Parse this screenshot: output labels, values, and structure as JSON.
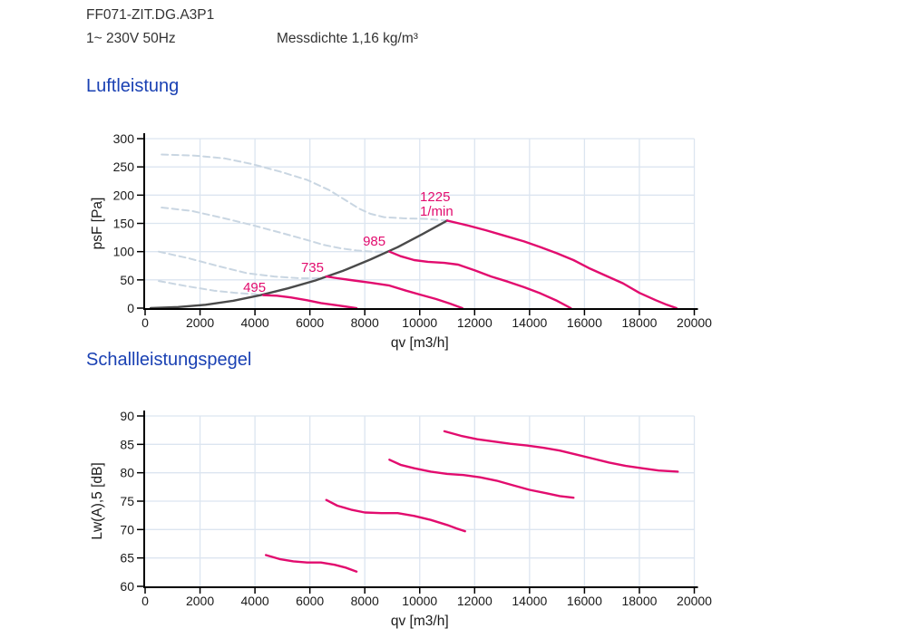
{
  "header": {
    "model": "FF071-ZIT.DG.A3P1",
    "power": "1~ 230V 50Hz",
    "density": "Messdichte 1,16 kg/m³"
  },
  "colors": {
    "heading_blue": "#1A41B3",
    "curve_pink": "#E20C6E",
    "curve_gray": "#4A4A4A",
    "curve_dashed_blue": "#C9D6E2",
    "gridline": "#DCE5F0",
    "axis": "#000000",
    "text": "#1A1A1A",
    "header_text": "#333333"
  },
  "chart_data": [
    {
      "type": "line",
      "title": "Luftleistung",
      "xlabel": "qv [m3/h]",
      "ylabel": "psF [Pa]",
      "xlim": [
        0,
        20000
      ],
      "ylim": [
        0,
        300
      ],
      "x_ticks": [
        0,
        2000,
        4000,
        6000,
        8000,
        10000,
        12000,
        14000,
        16000,
        18000,
        20000
      ],
      "y_ticks": [
        0,
        50,
        100,
        150,
        200,
        250,
        300
      ],
      "grid": true,
      "legend": "none",
      "series": [
        {
          "name": "system-limit-curve",
          "color_key": "curve_gray",
          "dash": false,
          "points": [
            [
              200,
              0
            ],
            [
              1200,
              2
            ],
            [
              2200,
              6
            ],
            [
              3200,
              13
            ],
            [
              4200,
              23
            ],
            [
              5200,
              35
            ],
            [
              6200,
              49
            ],
            [
              7200,
              66
            ],
            [
              8200,
              86
            ],
            [
              9200,
              108
            ],
            [
              10100,
              131
            ],
            [
              11000,
              155
            ]
          ]
        },
        {
          "name": "1225-rpm-unstable",
          "color_key": "curve_dashed_blue",
          "dash": true,
          "points": [
            [
              600,
              272
            ],
            [
              1800,
              270
            ],
            [
              2900,
              265
            ],
            [
              3900,
              255
            ],
            [
              4900,
              242
            ],
            [
              5900,
              227
            ],
            [
              6700,
              209
            ],
            [
              7300,
              191
            ],
            [
              7800,
              176
            ],
            [
              8200,
              167
            ],
            [
              8700,
              161
            ],
            [
              9400,
              159
            ],
            [
              10200,
              158
            ],
            [
              11000,
              155
            ]
          ]
        },
        {
          "name": "985-rpm-unstable",
          "color_key": "curve_dashed_blue",
          "dash": true,
          "points": [
            [
              600,
              178
            ],
            [
              1700,
              172
            ],
            [
              2800,
              160
            ],
            [
              3900,
              147
            ],
            [
              4900,
              134
            ],
            [
              5800,
              122
            ],
            [
              6500,
              112
            ],
            [
              7100,
              106
            ],
            [
              7700,
              102
            ],
            [
              8300,
              100
            ],
            [
              8900,
              100
            ]
          ]
        },
        {
          "name": "735-rpm-unstable",
          "color_key": "curve_dashed_blue",
          "dash": true,
          "points": [
            [
              500,
              100
            ],
            [
              1600,
              88
            ],
            [
              2700,
              74
            ],
            [
              3700,
              62
            ],
            [
              4700,
              56
            ],
            [
              5600,
              53
            ],
            [
              6200,
              53
            ],
            [
              6600,
              55
            ]
          ]
        },
        {
          "name": "495-rpm-unstable",
          "color_key": "curve_dashed_blue",
          "dash": true,
          "points": [
            [
              500,
              48
            ],
            [
              1500,
              39
            ],
            [
              2500,
              31
            ],
            [
              3300,
              27
            ],
            [
              3900,
              25
            ],
            [
              4300,
              23
            ]
          ]
        },
        {
          "name": "1225-rpm-curve",
          "color_key": "curve_pink",
          "dash": false,
          "points": [
            [
              11000,
              155
            ],
            [
              11700,
              147
            ],
            [
              12400,
              138
            ],
            [
              13100,
              128
            ],
            [
              13800,
              118
            ],
            [
              14400,
              108
            ],
            [
              15000,
              97
            ],
            [
              15600,
              85
            ],
            [
              16200,
              70
            ],
            [
              16800,
              57
            ],
            [
              17400,
              44
            ],
            [
              18000,
              27
            ],
            [
              18600,
              14
            ],
            [
              19000,
              6
            ],
            [
              19350,
              0
            ]
          ]
        },
        {
          "name": "985-rpm-curve",
          "color_key": "curve_pink",
          "dash": false,
          "points": [
            [
              8900,
              100
            ],
            [
              9300,
              92
            ],
            [
              9800,
              85
            ],
            [
              10300,
              82
            ],
            [
              10900,
              80
            ],
            [
              11400,
              77
            ],
            [
              12000,
              67
            ],
            [
              12600,
              56
            ],
            [
              13200,
              47
            ],
            [
              13800,
              37
            ],
            [
              14400,
              26
            ],
            [
              15000,
              13
            ],
            [
              15500,
              0
            ]
          ]
        },
        {
          "name": "735-rpm-curve",
          "color_key": "curve_pink",
          "dash": false,
          "points": [
            [
              6600,
              56
            ],
            [
              7000,
              53
            ],
            [
              7600,
              49
            ],
            [
              8200,
              45
            ],
            [
              8900,
              40
            ],
            [
              9500,
              31
            ],
            [
              10000,
              24
            ],
            [
              10600,
              16
            ],
            [
              11100,
              8
            ],
            [
              11550,
              0
            ]
          ]
        },
        {
          "name": "495-rpm-curve",
          "color_key": "curve_pink",
          "dash": false,
          "points": [
            [
              4300,
              23
            ],
            [
              4800,
              22
            ],
            [
              5300,
              19
            ],
            [
              5900,
              14
            ],
            [
              6400,
              9
            ],
            [
              7000,
              5
            ],
            [
              7700,
              0
            ]
          ]
        }
      ],
      "annotations": [
        {
          "text": "495",
          "x": 3570,
          "y": 29
        },
        {
          "text": "735",
          "x": 5680,
          "y": 64
        },
        {
          "text": "985",
          "x": 7930,
          "y": 111
        },
        {
          "text": "1225",
          "x": 10010,
          "y": 189
        },
        {
          "text": "1/min",
          "x": 10010,
          "y": 164
        }
      ]
    },
    {
      "type": "line",
      "title": "Schallleistungspegel",
      "xlabel": "qv [m3/h]",
      "ylabel": "Lw(A),5 [dB]",
      "xlim": [
        0,
        20000
      ],
      "ylim": [
        60,
        90
      ],
      "x_ticks": [
        0,
        2000,
        4000,
        6000,
        8000,
        10000,
        12000,
        14000,
        16000,
        18000,
        20000
      ],
      "y_ticks": [
        60,
        65,
        70,
        75,
        80,
        85,
        90
      ],
      "grid": true,
      "legend": "none",
      "series": [
        {
          "name": "1225-rpm-noise",
          "color_key": "curve_pink",
          "dash": false,
          "points": [
            [
              10900,
              87.3
            ],
            [
              11500,
              86.5
            ],
            [
              12100,
              85.9
            ],
            [
              12700,
              85.5
            ],
            [
              13300,
              85.1
            ],
            [
              13900,
              84.8
            ],
            [
              14500,
              84.4
            ],
            [
              15100,
              83.9
            ],
            [
              15700,
              83.2
            ],
            [
              16300,
              82.5
            ],
            [
              16900,
              81.8
            ],
            [
              17500,
              81.2
            ],
            [
              18100,
              80.8
            ],
            [
              18700,
              80.4
            ],
            [
              19400,
              80.2
            ]
          ]
        },
        {
          "name": "985-rpm-noise",
          "color_key": "curve_pink",
          "dash": false,
          "points": [
            [
              8900,
              82.3
            ],
            [
              9300,
              81.4
            ],
            [
              9800,
              80.8
            ],
            [
              10400,
              80.2
            ],
            [
              11000,
              79.8
            ],
            [
              11600,
              79.6
            ],
            [
              12200,
              79.2
            ],
            [
              12800,
              78.6
            ],
            [
              13400,
              77.8
            ],
            [
              14000,
              77.0
            ],
            [
              14600,
              76.4
            ],
            [
              15100,
              75.9
            ],
            [
              15600,
              75.6
            ]
          ]
        },
        {
          "name": "735-rpm-noise",
          "color_key": "curve_pink",
          "dash": false,
          "points": [
            [
              6600,
              75.2
            ],
            [
              7000,
              74.2
            ],
            [
              7500,
              73.5
            ],
            [
              8000,
              73.0
            ],
            [
              8600,
              72.9
            ],
            [
              9200,
              72.9
            ],
            [
              9800,
              72.4
            ],
            [
              10400,
              71.7
            ],
            [
              11000,
              70.8
            ],
            [
              11400,
              70.1
            ],
            [
              11650,
              69.7
            ]
          ]
        },
        {
          "name": "495-rpm-noise",
          "color_key": "curve_pink",
          "dash": false,
          "points": [
            [
              4400,
              65.5
            ],
            [
              4900,
              64.8
            ],
            [
              5400,
              64.4
            ],
            [
              5900,
              64.2
            ],
            [
              6400,
              64.2
            ],
            [
              6900,
              63.8
            ],
            [
              7300,
              63.3
            ],
            [
              7700,
              62.6
            ]
          ]
        }
      ],
      "annotations": []
    }
  ]
}
